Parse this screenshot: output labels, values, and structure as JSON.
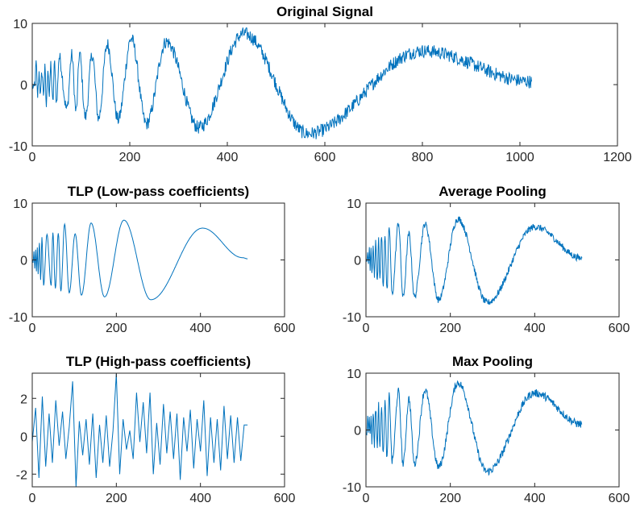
{
  "line_color": "#0072BD",
  "chart_data": [
    {
      "type": "line",
      "title": "Original Signal",
      "xlim": [
        0,
        1200
      ],
      "ylim": [
        -10,
        10
      ],
      "xticks": [
        0,
        200,
        400,
        600,
        800,
        1000,
        1200
      ],
      "yticks": [
        -10,
        0,
        10
      ],
      "grid": false,
      "x_end": 1024,
      "noisy": true,
      "extrema": [
        [
          0,
          0
        ],
        [
          3,
          -1
        ],
        [
          6,
          0.5
        ],
        [
          8,
          3.5
        ],
        [
          11,
          -1.8
        ],
        [
          14,
          2
        ],
        [
          17,
          -1.8
        ],
        [
          20,
          2.2
        ],
        [
          23,
          -1.5
        ],
        [
          26,
          2.5
        ],
        [
          29,
          -3.5
        ],
        [
          32,
          3
        ],
        [
          35,
          -2
        ],
        [
          38,
          3.3
        ],
        [
          42,
          -3
        ],
        [
          46,
          3.5
        ],
        [
          50,
          -3
        ],
        [
          55,
          4.5
        ],
        [
          71,
          -4
        ],
        [
          81,
          4.8
        ],
        [
          90,
          -4.4
        ],
        [
          97,
          5.1
        ],
        [
          109,
          -5.3
        ],
        [
          123,
          4.9
        ],
        [
          136,
          -5.5
        ],
        [
          154,
          6.6
        ],
        [
          176,
          -5.7
        ],
        [
          203,
          7.5
        ],
        [
          234,
          -6.4
        ],
        [
          275,
          7
        ],
        [
          341,
          -7
        ],
        [
          434,
          8.3
        ],
        [
          565,
          -8
        ],
        [
          800,
          5.5
        ],
        [
          1024,
          0.5
        ]
      ]
    },
    {
      "type": "line",
      "title": "TLP (Low-pass coefficients)",
      "xlim": [
        0,
        600
      ],
      "ylim": [
        -10,
        10
      ],
      "xticks": [
        0,
        200,
        400,
        600
      ],
      "yticks": [
        -10,
        0,
        10
      ],
      "grid": false,
      "x_end": 512,
      "noisy": false,
      "extrema": [
        [
          0,
          0
        ],
        [
          2,
          -0.5
        ],
        [
          4,
          1.5
        ],
        [
          6,
          -1.5
        ],
        [
          8,
          1.8
        ],
        [
          10,
          -2
        ],
        [
          12,
          2.2
        ],
        [
          14,
          -2.5
        ],
        [
          17,
          3
        ],
        [
          20,
          -3.5
        ],
        [
          23,
          4
        ],
        [
          27,
          -4.5
        ],
        [
          35,
          4.5
        ],
        [
          45,
          -4.5
        ],
        [
          49,
          4.8
        ],
        [
          55,
          -5
        ],
        [
          62,
          4.7
        ],
        [
          68,
          -5.5
        ],
        [
          77,
          6.3
        ],
        [
          88,
          -5.8
        ],
        [
          102,
          4.6
        ],
        [
          117,
          -6.2
        ],
        [
          140,
          6.5
        ],
        [
          172,
          -6.5
        ],
        [
          218,
          7
        ],
        [
          282,
          -7
        ],
        [
          405,
          5.6
        ],
        [
          500,
          0.4
        ],
        [
          512,
          0.2
        ]
      ]
    },
    {
      "type": "line",
      "title": "Average Pooling",
      "xlim": [
        0,
        600
      ],
      "ylim": [
        -10,
        10
      ],
      "xticks": [
        0,
        200,
        400,
        600
      ],
      "yticks": [
        -10,
        0,
        10
      ],
      "grid": false,
      "x_end": 512,
      "noisy": true,
      "extrema": [
        [
          0,
          0
        ],
        [
          2,
          -0.8
        ],
        [
          4,
          1.8
        ],
        [
          6,
          -1.2
        ],
        [
          8,
          2
        ],
        [
          10,
          -1.5
        ],
        [
          12,
          2.2
        ],
        [
          14,
          -2.5
        ],
        [
          17,
          3
        ],
        [
          20,
          -3
        ],
        [
          23,
          3
        ],
        [
          27,
          -3.5
        ],
        [
          30,
          4.5
        ],
        [
          33,
          -3.8
        ],
        [
          37,
          4.5
        ],
        [
          41,
          -5
        ],
        [
          45,
          4.5
        ],
        [
          50,
          -5.5
        ],
        [
          55,
          5.8
        ],
        [
          62,
          -6
        ],
        [
          77,
          6.5
        ],
        [
          88,
          -6.6
        ],
        [
          102,
          4.6
        ],
        [
          115,
          -6.5
        ],
        [
          140,
          6.3
        ],
        [
          172,
          -7
        ],
        [
          218,
          7.2
        ],
        [
          287,
          -7.5
        ],
        [
          400,
          5.8
        ],
        [
          512,
          0.3
        ]
      ]
    },
    {
      "type": "line",
      "title": "TLP (High-pass coefficients)",
      "xlim": [
        0,
        600
      ],
      "ylim": [
        -2.67,
        3.33
      ],
      "xticks": [
        0,
        200,
        400,
        600
      ],
      "yticks": [
        -2,
        0,
        2
      ],
      "grid": false,
      "x": [
        0,
        8,
        16,
        24,
        32,
        40,
        48,
        56,
        64,
        72,
        80,
        88,
        96,
        104,
        112,
        120,
        128,
        136,
        144,
        152,
        160,
        168,
        176,
        184,
        192,
        200,
        208,
        216,
        224,
        232,
        240,
        248,
        256,
        264,
        272,
        280,
        288,
        296,
        304,
        312,
        320,
        328,
        336,
        344,
        352,
        360,
        368,
        376,
        384,
        392,
        400,
        408,
        416,
        424,
        432,
        440,
        448,
        456,
        464,
        472,
        480,
        488,
        496,
        504,
        512
      ],
      "values": [
        -0.3,
        1.5,
        -2.2,
        2.1,
        -1.6,
        1.2,
        -1.4,
        1.9,
        -0.5,
        1.3,
        -1.2,
        0.5,
        2.9,
        -2.7,
        0.8,
        -1.0,
        0.9,
        -1.5,
        1.2,
        -2.2,
        0.6,
        -1.4,
        1.1,
        -1.6,
        0.3,
        3.3,
        -2.0,
        0.9,
        -0.7,
        0.3,
        -1.2,
        2.3,
        -0.3,
        1.8,
        -0.9,
        2.3,
        -2.0,
        0.7,
        -1.5,
        1.7,
        -0.9,
        1.3,
        -1.2,
        1.2,
        -2.3,
        1.0,
        -0.8,
        1.4,
        -1.7,
        0.9,
        -0.8,
        1.9,
        -2.1,
        1.0,
        -1.4,
        0.9,
        -1.8,
        1.6,
        -1.2,
        1.1,
        -1.4,
        1.0,
        -1.3,
        0.6,
        0.6
      ]
    },
    {
      "type": "line",
      "title": "Max Pooling",
      "xlim": [
        0,
        600
      ],
      "ylim": [
        -10,
        10
      ],
      "xticks": [
        0,
        200,
        400,
        600
      ],
      "yticks": [
        -10,
        0,
        10
      ],
      "grid": false,
      "x_end": 512,
      "noisy": true,
      "extrema": [
        [
          0,
          0
        ],
        [
          2,
          -0.5
        ],
        [
          4,
          3
        ],
        [
          6,
          -0.8
        ],
        [
          8,
          2.5
        ],
        [
          10,
          -1.2
        ],
        [
          12,
          3
        ],
        [
          14,
          -2
        ],
        [
          17,
          3.2
        ],
        [
          20,
          -2.5
        ],
        [
          23,
          4
        ],
        [
          27,
          -3
        ],
        [
          30,
          4.8
        ],
        [
          33,
          -3.5
        ],
        [
          37,
          4.5
        ],
        [
          41,
          -4.5
        ],
        [
          45,
          5
        ],
        [
          50,
          -5
        ],
        [
          55,
          6
        ],
        [
          62,
          -5.5
        ],
        [
          77,
          6.8
        ],
        [
          88,
          -6
        ],
        [
          102,
          5.5
        ],
        [
          115,
          -6
        ],
        [
          140,
          7
        ],
        [
          172,
          -6.5
        ],
        [
          218,
          8.3
        ],
        [
          287,
          -7.3
        ],
        [
          400,
          6.5
        ],
        [
          512,
          1
        ]
      ]
    }
  ]
}
